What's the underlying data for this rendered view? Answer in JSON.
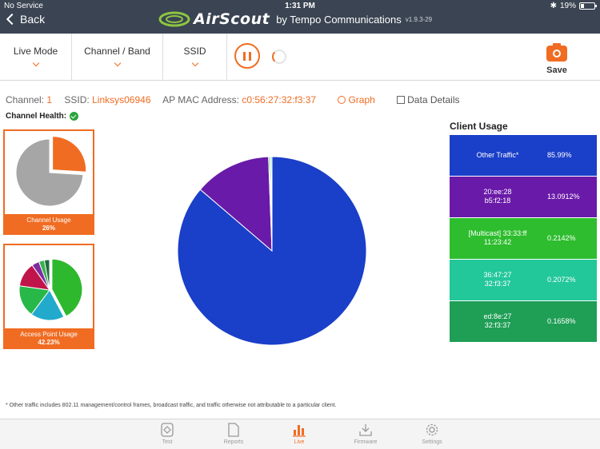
{
  "status_bar": {
    "carrier": "No Service",
    "time": "1:31 PM",
    "battery": "19%"
  },
  "nav": {
    "back_label": "Back",
    "app_name": "AirScout",
    "by_label": "by Tempo Communications",
    "version": "v1.9.3-29"
  },
  "toolbar": {
    "live_mode": "Live Mode",
    "channel_band": "Channel / Band",
    "ssid": "SSID",
    "save": "Save"
  },
  "info": {
    "channel_label": "Channel:",
    "channel_value": "1",
    "ssid_label": "SSID:",
    "ssid_value": "Linksys06946",
    "mac_label": "AP MAC Address:",
    "mac_value": "c0:56:27:32:f3:37",
    "graph_label": "Graph",
    "data_details_label": "Data Details"
  },
  "channel_health": {
    "label": "Channel Health:"
  },
  "channel_usage": {
    "title": "Channel Usage",
    "value": "26%"
  },
  "ap_usage": {
    "title": "Access Point Usage",
    "value": "42.23%"
  },
  "client_usage": {
    "title": "Client Usage",
    "rows": [
      {
        "name_lines": [
          "Other Traffic*"
        ],
        "pct": "85.99%",
        "color": "#1a3fc8"
      },
      {
        "name_lines": [
          "20:ee:28",
          "b5:f2:18"
        ],
        "pct": "13.0912%",
        "color": "#6a1aa8"
      },
      {
        "name_lines": [
          "[Multicast]  33:33:ff",
          "11:23:42"
        ],
        "pct": "0.2142%",
        "color": "#2ebd2e"
      },
      {
        "name_lines": [
          "36:47:27",
          "32:f3:37"
        ],
        "pct": "0.2072%",
        "color": "#22c79a"
      },
      {
        "name_lines": [
          "ed:8e:27",
          "32:f3:37"
        ],
        "pct": "0.1658%",
        "color": "#1f9e55"
      }
    ]
  },
  "chart_data": [
    {
      "type": "pie",
      "values": [
        85.99,
        13.0912,
        0.2142,
        0.2072,
        0.1658
      ],
      "colors": [
        "#1a3fc8",
        "#6a1aa8",
        "#2ebd2e",
        "#22c79a",
        "#1f9e55"
      ]
    },
    {
      "type": "pie",
      "values": [
        26,
        74
      ],
      "colors": [
        "#f06c22",
        "#a6a6a6"
      ]
    },
    {
      "type": "pie",
      "values": [
        42.23,
        18,
        17,
        13,
        4,
        3,
        2.77
      ],
      "colors": [
        "#2eb82e",
        "#22aacc",
        "#28b84a",
        "#c0144a",
        "#7d2da0",
        "#3cb050",
        "#1c6e3c"
      ]
    }
  ],
  "footnote": "* Other traffic includes 802.11 management/control frames, broadcast traffic, and traffic otherwise not attributable to a particular client.",
  "tabs": [
    "Test",
    "Reports",
    "Live",
    "Firmware",
    "Settings"
  ]
}
